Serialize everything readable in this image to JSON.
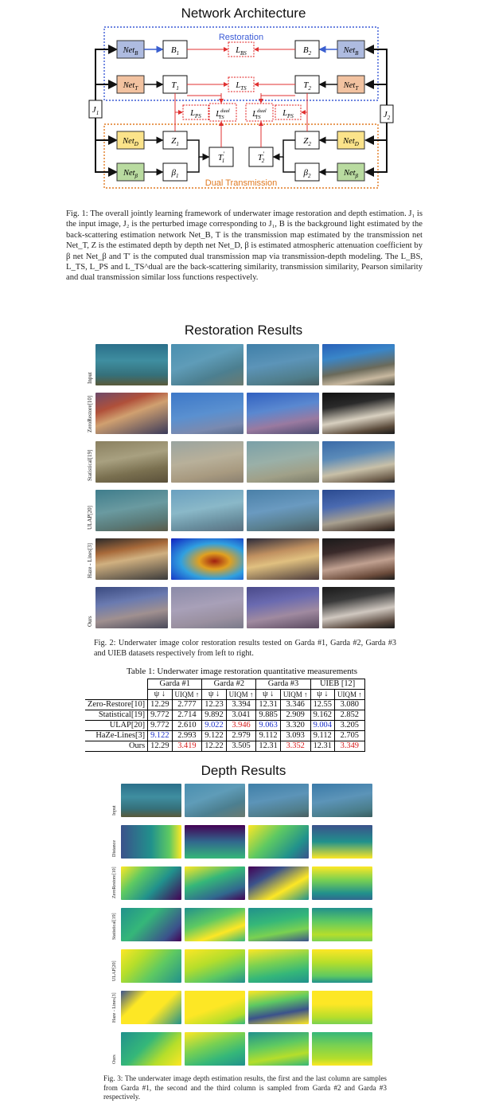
{
  "titles": {
    "network": "Network Architecture",
    "restoration": "Restoration Results",
    "depth": "Depth Results"
  },
  "diagram": {
    "restoration_label": "Restoration",
    "dual_label": "Dual Transmission",
    "colors": {
      "restoration_border": "#3b5bd6",
      "dual_border": "#e07a22",
      "netB": "#aebbe0",
      "netT": "#f2c2a0",
      "netD": "#fbe38a",
      "netBeta": "#b9dba0",
      "loss_border": "#e02020",
      "arrow_blue": "#3a5fd0",
      "arrow_red": "#e03030"
    },
    "nodes": {
      "netB": "Net",
      "netB_sub": "B",
      "netT": "Net",
      "netT_sub": "T",
      "netD": "Net",
      "netD_sub": "D",
      "netBeta": "Net",
      "netBeta_sub": "β",
      "B1": "B",
      "B1_sub": "1",
      "B2": "B",
      "B2_sub": "2",
      "T1": "T",
      "T1_sub": "1",
      "T2": "T",
      "T2_sub": "2",
      "Z1": "Z",
      "Z1_sub": "1",
      "Z2": "Z",
      "Z2_sub": "2",
      "beta1": "β",
      "beta1_sub": "1",
      "beta2": "β",
      "beta2_sub": "2",
      "T1p": "T",
      "T1p_sub": "1",
      "T1p_prime": "′",
      "T2p": "T",
      "T2p_sub": "2",
      "T2p_prime": "′",
      "J1": "J",
      "J1_sub": "1",
      "J2": "J",
      "J2_sub": "2",
      "LBS": "L",
      "LBS_sub": "BS",
      "LTS": "L",
      "LTS_sub": "TS",
      "LPS": "L",
      "LPS_sub": "PS",
      "Ldual": "L",
      "Ldual_sub": "TS",
      "Ldual_sup": "dual"
    }
  },
  "fig1_caption": "Fig. 1: The overall jointly learning framework of underwater image restoration and depth estimation. J₁ is the input image, J₂ is the perturbed image corresponding to J₁, B is the background light estimated by the back-scattering estimation network Net_B, T is the transmission map estimated by the transmission net Net_T, Z is the estimated depth by depth net Net_D, β is estimated atmospheric attenuation coefficient by β net Net_β and T′ is the computed dual transmission map via transmission-depth modeling. The L_BS, L_TS, L_PS and L_TS^dual are the back-scattering similarity, transmission similarity, Pearson similarity and dual transmission similar loss functions respectively.",
  "restoration_rows": [
    "Input",
    "ZeroRestore[10]",
    "Statistical[19]",
    "ULAP[20]",
    "Haze - Lines[3]",
    "Ours"
  ],
  "fig2_caption": "Fig. 2: Underwater image color restoration results tested on Garda #1, Garda #2, Garda #3 and UIEB datasets respectively from left to right.",
  "table": {
    "caption": "Table 1: Underwater image restoration quantitative measurements",
    "datasets": [
      "Garda #1",
      "Garda #2",
      "Garda #3",
      "UIEB [12]"
    ],
    "metrics": [
      "ψ ↓",
      "UIQM ↑"
    ],
    "rows": [
      {
        "method": "Zero-Restore[10]",
        "values": [
          "12.29",
          "2.777",
          "12.23",
          "3.394",
          "12.31",
          "3.346",
          "12.55",
          "3.080"
        ]
      },
      {
        "method": "Statistical[19]",
        "values": [
          "9.772",
          "2.714",
          "9.892",
          "3.041",
          "9.885",
          "2.909",
          "9.162",
          "2.852"
        ]
      },
      {
        "method": "ULAP[20]",
        "values": [
          "9.772",
          "2.610",
          "9.022",
          "3.946",
          "9.063",
          "3.320",
          "9.004",
          "3.205"
        ]
      },
      {
        "method": "HaZe-Lines[3]",
        "values": [
          "9.122",
          "2.993",
          "9.122",
          "2.979",
          "9.112",
          "3.093",
          "9.112",
          "2.705"
        ]
      },
      {
        "method": "Ours",
        "values": [
          "12.29",
          "3.419",
          "12.22",
          "3.505",
          "12.31",
          "3.352",
          "12.31",
          "3.349"
        ]
      }
    ],
    "highlight_blue": "#1a2fc7",
    "highlight_red": "#d61a1a"
  },
  "depth_rows": [
    "Input",
    "Distance",
    "ZeroRestore[10]",
    "Statistical[19]",
    "ULAP[20]",
    "Haze - Lines[3]",
    "Ours"
  ],
  "fig3_caption": "Fig. 3: The underwater image depth estimation results, the first and the last column are samples from Garda #1, the second and the third column is sampled from Garda #2 and Garda #3 respectively."
}
